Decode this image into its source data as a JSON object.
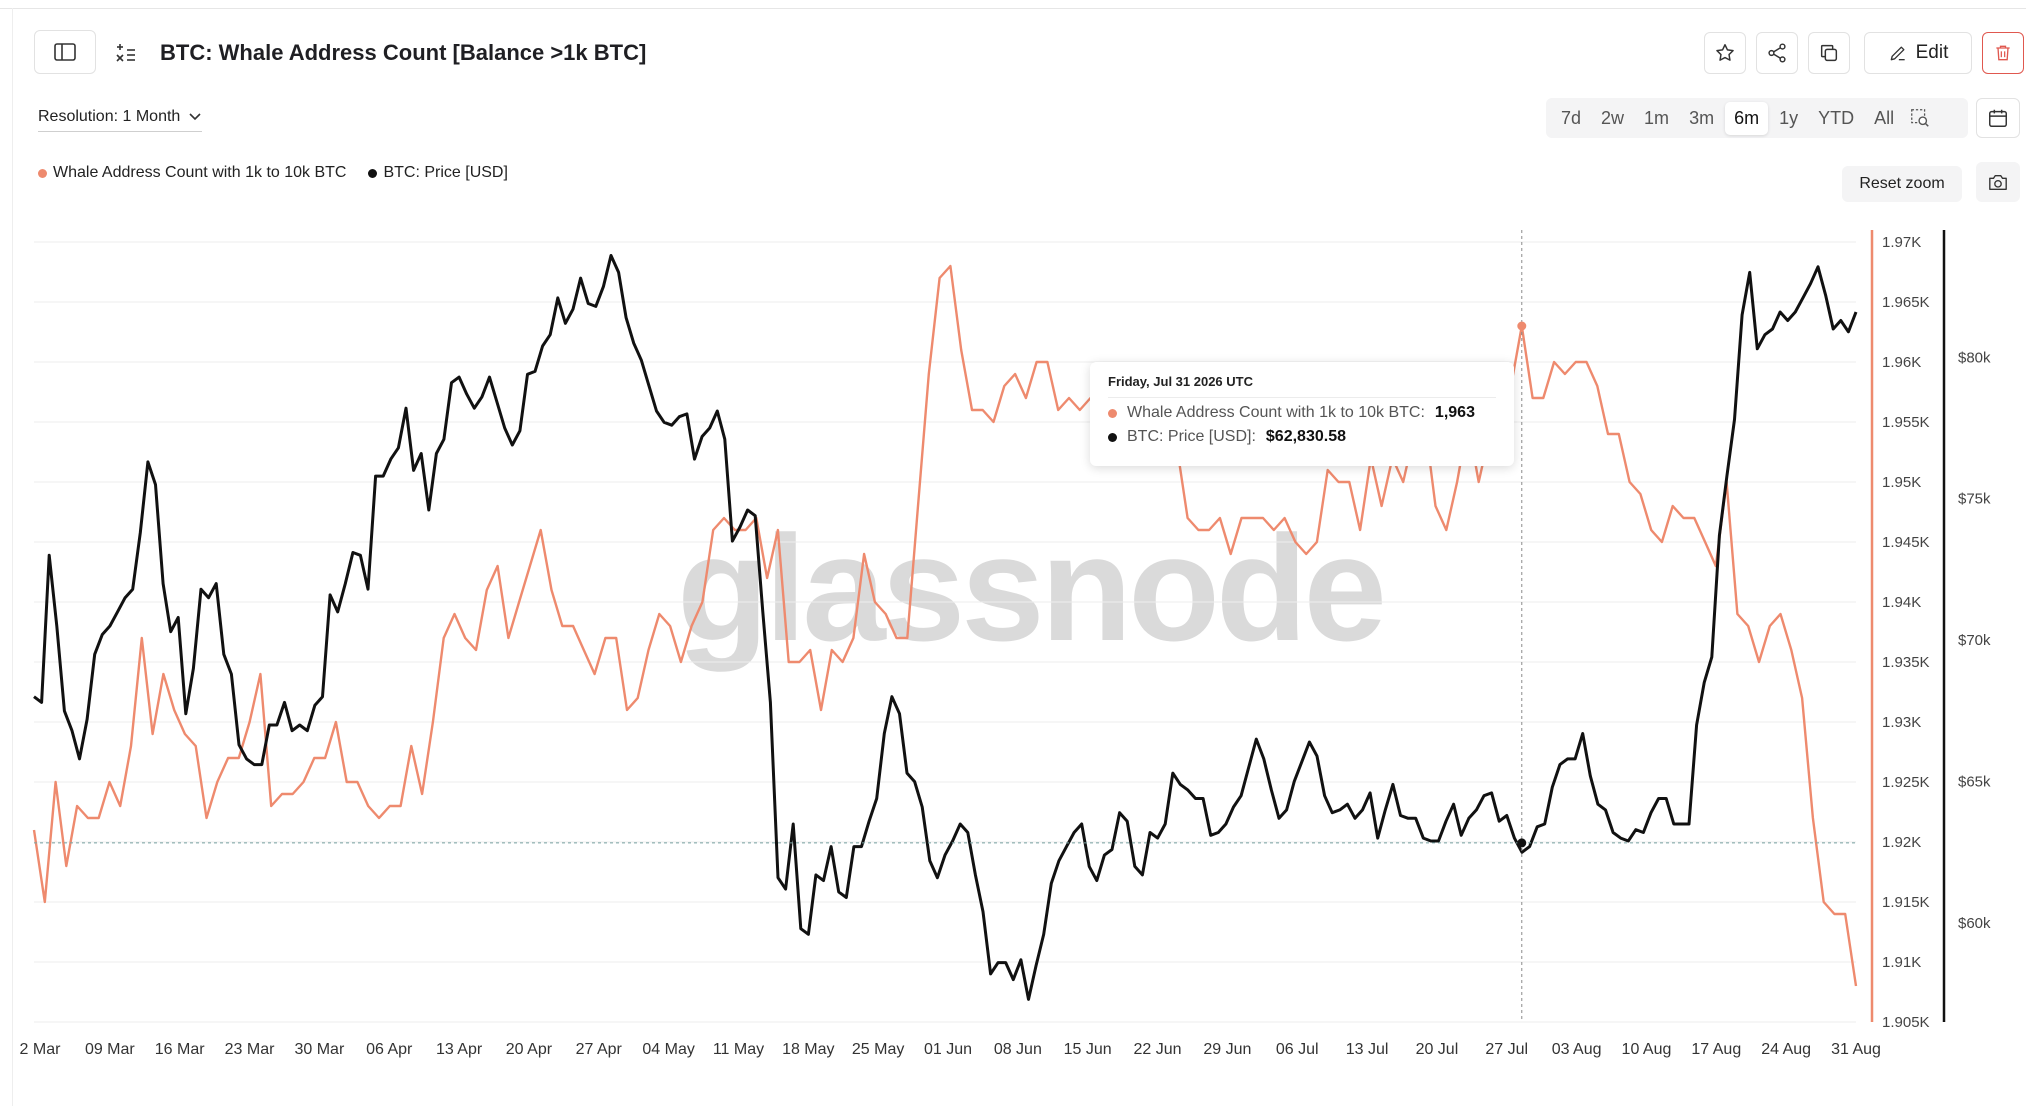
{
  "header": {
    "title": "BTC: Whale Address Count [Balance >1k BTC]",
    "edit_label": "Edit"
  },
  "controls": {
    "resolution_label": "Resolution: 1 Month",
    "ranges": [
      "7d",
      "2w",
      "1m",
      "3m",
      "6m",
      "1y",
      "YTD",
      "All"
    ],
    "active_range": "6m",
    "reset_zoom": "Reset zoom"
  },
  "legend": [
    {
      "label": "Whale Address Count with 1k to 10k BTC",
      "color": "#ee8a6e"
    },
    {
      "label": "BTC: Price [USD]",
      "color": "#111111"
    }
  ],
  "tooltip": {
    "date": "Friday, Jul 31 2026 UTC",
    "whale_label": "Whale Address Count with 1k to 10k BTC:",
    "whale_value": "1,963",
    "price_label": "BTC: Price [USD]:",
    "price_value": "$62,830.58"
  },
  "watermark": "glassnode",
  "colors": {
    "whale": "#ee8a6e",
    "price": "#111111",
    "grid": "#ededed"
  },
  "chart_data": {
    "type": "line",
    "x_ticks": [
      "2 Mar",
      "09 Mar",
      "16 Mar",
      "23 Mar",
      "30 Mar",
      "06 Apr",
      "13 Apr",
      "20 Apr",
      "27 Apr",
      "04 May",
      "11 May",
      "18 May",
      "25 May",
      "01 Jun",
      "08 Jun",
      "15 Jun",
      "22 Jun",
      "29 Jun",
      "06 Jul",
      "13 Jul",
      "20 Jul",
      "27 Jul",
      "03 Aug",
      "10 Aug",
      "17 Aug",
      "24 Aug",
      "31 Aug"
    ],
    "y_left_ticks": [
      "1.97K",
      "1.965K",
      "1.96K",
      "1.955K",
      "1.95K",
      "1.945K",
      "1.94K",
      "1.935K",
      "1.93K",
      "1.925K",
      "1.92K",
      "1.915K",
      "1.91K",
      "1.905K"
    ],
    "y_right_ticks": [
      "$80k",
      "$75k",
      "$70k",
      "$65k",
      "$60k"
    ],
    "whale_range": [
      1905,
      1971
    ],
    "price_range": [
      56500,
      84500
    ],
    "series": [
      {
        "name": "Whale Address Count with 1k to 10k BTC",
        "axis": "left",
        "values": [
          1921,
          1915,
          1925,
          1918,
          1923,
          1922,
          1922,
          1925,
          1923,
          1928,
          1937,
          1929,
          1934,
          1931,
          1929,
          1928,
          1922,
          1925,
          1927,
          1927,
          1930,
          1934,
          1923,
          1924,
          1924,
          1925,
          1927,
          1927,
          1930,
          1925,
          1925,
          1923,
          1922,
          1923,
          1923,
          1928,
          1924,
          1930,
          1937,
          1939,
          1937,
          1936,
          1941,
          1943,
          1937,
          1940,
          1943,
          1946,
          1941,
          1938,
          1938,
          1936,
          1934,
          1937,
          1937,
          1931,
          1932,
          1936,
          1939,
          1938,
          1935,
          1938,
          1940,
          1946,
          1947,
          1946,
          1946,
          1947,
          1942,
          1946,
          1935,
          1935,
          1936,
          1931,
          1936,
          1935,
          1937,
          1944,
          1940,
          1939,
          1937,
          1937,
          1948,
          1959,
          1967,
          1968,
          1961,
          1956,
          1956,
          1955,
          1958,
          1959,
          1957,
          1960,
          1960,
          1956,
          1957,
          1956,
          1957,
          1956,
          1955,
          1957,
          1955,
          1957,
          1956,
          1955,
          1953,
          1947,
          1946,
          1946,
          1947,
          1944,
          1947,
          1947,
          1947,
          1946,
          1947,
          1945,
          1944,
          1945,
          1951,
          1950,
          1950,
          1946,
          1952,
          1948,
          1952,
          1950,
          1954,
          1955,
          1948,
          1946,
          1950,
          1955,
          1950,
          1954,
          1959,
          1958,
          1963,
          1957,
          1957,
          1960,
          1959,
          1960,
          1960,
          1958,
          1954,
          1954,
          1950,
          1949,
          1946,
          1945,
          1948,
          1947,
          1947,
          1945,
          1943,
          1950,
          1939,
          1938,
          1935,
          1938,
          1939,
          1936,
          1932,
          1922,
          1915,
          1914,
          1914,
          1908
        ]
      },
      {
        "name": "BTC: Price [USD]",
        "axis": "right",
        "values": [
          68000,
          67800,
          73000,
          70500,
          67500,
          66800,
          65800,
          67200,
          69500,
          70200,
          70500,
          71000,
          71500,
          71800,
          73800,
          76300,
          75500,
          72000,
          70300,
          70800,
          67400,
          69000,
          71800,
          71500,
          72000,
          69500,
          68800,
          66300,
          65800,
          65600,
          65600,
          67000,
          67000,
          67800,
          66800,
          67000,
          66800,
          67700,
          68000,
          71600,
          71000,
          72000,
          73100,
          73000,
          71800,
          75800,
          75800,
          76400,
          76800,
          78200,
          76000,
          76600,
          74600,
          76600,
          77100,
          79100,
          79300,
          78700,
          78200,
          78600,
          79300,
          78400,
          77500,
          76900,
          77400,
          79400,
          79500,
          80400,
          80800,
          82100,
          81200,
          81700,
          82800,
          81900,
          81800,
          82500,
          83600,
          83000,
          81400,
          80500,
          79900,
          79000,
          78100,
          77700,
          77600,
          77900,
          78000,
          76400,
          77200,
          77500,
          78100,
          77100,
          73500,
          74000,
          74600,
          74400,
          71000,
          67800,
          61600,
          61200,
          63500,
          59800,
          59600,
          61700,
          61500,
          62700,
          61100,
          60900,
          62700,
          62700,
          63600,
          64400,
          66700,
          68000,
          67400,
          65300,
          65000,
          64100,
          62200,
          61600,
          62400,
          62900,
          63500,
          63200,
          61700,
          60400,
          58200,
          58600,
          58600,
          58000,
          58700,
          57300,
          58500,
          59600,
          61400,
          62200,
          62700,
          63200,
          63500,
          62000,
          61500,
          62400,
          62600,
          63900,
          63600,
          62000,
          61700,
          63200,
          63000,
          63500,
          65300,
          64900,
          64700,
          64400,
          64400,
          63100,
          63200,
          63500,
          64100,
          64500,
          65500,
          66500,
          65800,
          64700,
          63700,
          64000,
          65000,
          65700,
          66400,
          65900,
          64500,
          63900,
          64000,
          64200,
          63700,
          64000,
          64600,
          63000,
          64000,
          64900,
          63800,
          63700,
          63700,
          63000,
          62900,
          62900,
          63600,
          64200,
          63100,
          63700,
          64000,
          64500,
          64600,
          63600,
          63800,
          63000,
          62500,
          62700,
          63400,
          63500,
          64800,
          65600,
          65800,
          65800,
          66700,
          65200,
          64200,
          64000,
          63200,
          63000,
          62900,
          63300,
          63200,
          63900,
          64400,
          64400,
          63500,
          63500,
          63500,
          67000,
          68500,
          69400,
          73700,
          75800,
          77800,
          81500,
          83000,
          80300,
          80800,
          81000,
          81600,
          81300,
          81600,
          82100,
          82600,
          83200,
          82200,
          81000,
          81300,
          80900,
          81600
        ]
      }
    ],
    "tooltip_point": {
      "date": "Jul 31 2026",
      "whale": 1963,
      "price": 62830.58
    },
    "grid": true,
    "legend_position": "top-left"
  }
}
